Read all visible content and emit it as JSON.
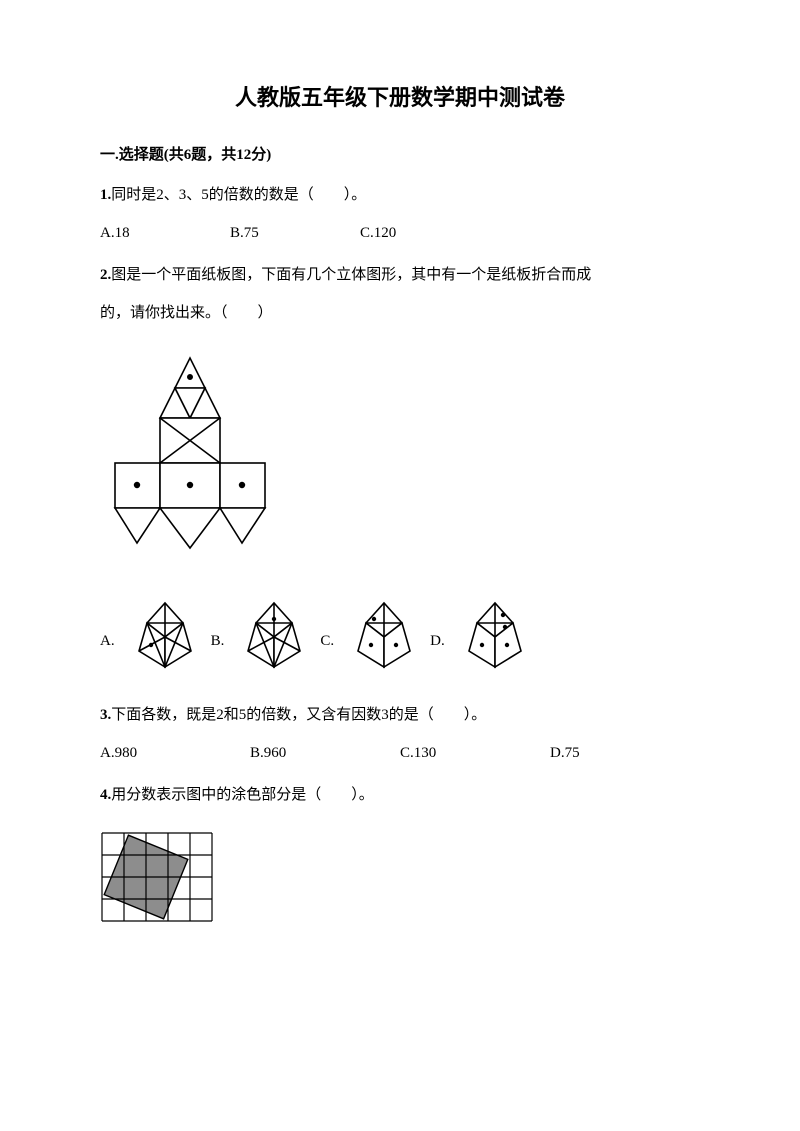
{
  "title": "人教版五年级下册数学期中测试卷",
  "section1": {
    "header": "一.选择题(共6题，共12分)"
  },
  "q1": {
    "num": "1.",
    "text": "同时是2、3、5的倍数的数是（　　）。",
    "opts": {
      "a": "A.18",
      "b": "B.75",
      "c": "C.120"
    }
  },
  "q2": {
    "num": "2.",
    "text1": "图是一个平面纸板图，下面有几个立体图形，其中有一个是纸板折合而成",
    "text2": "的，请你找出来。（　　）",
    "labels": {
      "a": "A.",
      "b": "B.",
      "c": "C.",
      "d": "D."
    },
    "net_figure": {
      "stroke": "#000000",
      "fill": "#ffffff",
      "stroke_width": 1.6
    },
    "cubes": {
      "stroke": "#000000",
      "fill": "#ffffff",
      "stroke_width": 1.6,
      "size": 76
    }
  },
  "q3": {
    "num": "3.",
    "text": "下面各数，既是2和5的倍数，又含有因数3的是（　　）。",
    "opts": {
      "a": "A.980",
      "b": "B.960",
      "c": "C.130",
      "d": "D.75"
    }
  },
  "q4": {
    "num": "4.",
    "text": "用分数表示图中的涂色部分是（　　）。",
    "grid": {
      "cols": 5,
      "rows": 4,
      "cell": 22,
      "stroke": "#000000",
      "fill_shape": "#8d8d8d",
      "background": "#ffffff"
    }
  }
}
